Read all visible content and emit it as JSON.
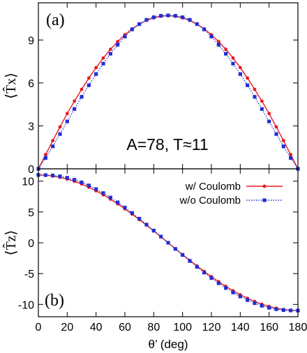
{
  "chart_data": [
    {
      "panel": "(a)",
      "type": "line",
      "annotation": "A=78, T≈11",
      "ylabel": "⟨T̂x⟩",
      "xlim": [
        0,
        180
      ],
      "ylim": [
        0,
        11.6
      ],
      "yticks": [
        "0",
        "3",
        "6",
        "9"
      ],
      "ytick_values": [
        0,
        3,
        6,
        9
      ],
      "x": [
        0,
        5,
        10,
        15,
        20,
        25,
        30,
        35,
        40,
        45,
        50,
        55,
        60,
        65,
        70,
        75,
        80,
        85,
        90,
        95,
        100,
        105,
        110,
        115,
        120,
        125,
        130,
        135,
        140,
        145,
        150,
        155,
        160,
        165,
        170,
        175,
        180
      ],
      "series": [
        {
          "name": "w/ Coulomb",
          "color": "#e8191f",
          "marker": "circle",
          "dash": "solid",
          "values": [
            0,
            0.99,
            1.97,
            2.93,
            3.86,
            4.73,
            5.55,
            6.34,
            7.07,
            7.74,
            8.35,
            8.89,
            9.37,
            9.78,
            10.11,
            10.37,
            10.55,
            10.66,
            10.7,
            10.66,
            10.55,
            10.37,
            10.11,
            9.78,
            9.37,
            8.89,
            8.35,
            7.74,
            7.07,
            6.34,
            5.55,
            4.73,
            3.86,
            2.93,
            1.97,
            0.99,
            0
          ]
        },
        {
          "name": "w/o Coulomb",
          "color": "#1f2fd6",
          "marker": "square",
          "dash": "dotted",
          "values": [
            0,
            0.76,
            1.57,
            2.43,
            3.31,
            4.18,
            5.03,
            5.84,
            6.62,
            7.35,
            8.04,
            8.67,
            9.24,
            9.74,
            10.11,
            10.41,
            10.59,
            10.69,
            10.72,
            10.69,
            10.59,
            10.41,
            10.11,
            9.74,
            9.24,
            8.67,
            8.04,
            7.35,
            6.62,
            5.84,
            5.03,
            4.18,
            3.31,
            2.43,
            1.57,
            0.76,
            0
          ]
        }
      ]
    },
    {
      "panel": "(b)",
      "type": "line",
      "ylabel": "⟨T̂z⟩",
      "xlabel": "θ’ (deg)",
      "xlim": [
        0,
        180
      ],
      "ylim": [
        -12,
        12
      ],
      "xticks": [
        "0",
        "20",
        "40",
        "60",
        "80",
        "100",
        "120",
        "140",
        "160",
        "180"
      ],
      "xtick_values": [
        0,
        20,
        40,
        60,
        80,
        100,
        120,
        140,
        160,
        180
      ],
      "yticks": [
        "-10",
        "-5",
        "0",
        "5",
        "10"
      ],
      "ytick_values": [
        -10,
        -5,
        0,
        5,
        10
      ],
      "legend": "top-right",
      "x": [
        0,
        5,
        10,
        15,
        20,
        25,
        30,
        35,
        40,
        45,
        50,
        55,
        60,
        65,
        70,
        75,
        80,
        85,
        90,
        95,
        100,
        105,
        110,
        115,
        120,
        125,
        130,
        135,
        140,
        145,
        150,
        155,
        160,
        165,
        170,
        175,
        180
      ],
      "series": [
        {
          "name": "w/ Coulomb",
          "color": "#e8191f",
          "marker": "circle",
          "dash": "solid",
          "values": [
            11.0,
            10.96,
            10.83,
            10.62,
            10.34,
            9.97,
            9.53,
            9.01,
            8.43,
            7.78,
            7.07,
            6.31,
            5.5,
            4.65,
            3.76,
            2.85,
            1.91,
            0.96,
            0,
            -0.96,
            -1.91,
            -2.85,
            -3.76,
            -4.65,
            -5.5,
            -6.31,
            -7.07,
            -7.78,
            -8.43,
            -9.01,
            -9.53,
            -9.97,
            -10.34,
            -10.62,
            -10.83,
            -10.96,
            -11.0
          ]
        },
        {
          "name": "w/o Coulomb",
          "color": "#1f2fd6",
          "marker": "square",
          "dash": "dotted",
          "values": [
            11.0,
            10.98,
            10.92,
            10.78,
            10.55,
            10.22,
            9.8,
            9.3,
            8.71,
            8.06,
            7.34,
            6.56,
            5.72,
            4.84,
            3.91,
            2.95,
            1.98,
            1.0,
            0,
            -1.0,
            -1.98,
            -2.95,
            -3.91,
            -4.84,
            -5.72,
            -6.56,
            -7.34,
            -8.06,
            -8.71,
            -9.3,
            -9.8,
            -10.22,
            -10.55,
            -10.78,
            -10.92,
            -10.98,
            -11.0
          ]
        }
      ]
    }
  ]
}
